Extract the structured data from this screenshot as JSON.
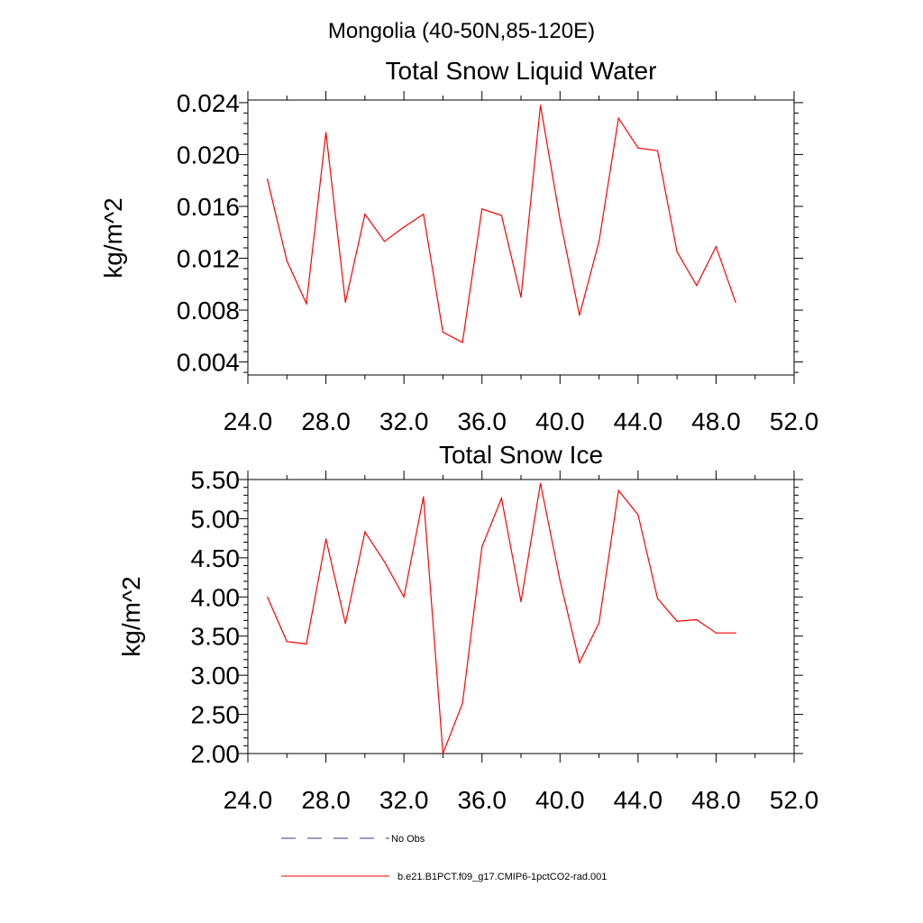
{
  "page_title": "Mongolia (40-50N,85-120E)",
  "chart_data": [
    {
      "type": "line",
      "title": "Total Snow Liquid Water",
      "xlabel": "",
      "ylabel": "kg/m^2",
      "xlim": [
        24,
        52
      ],
      "ylim": [
        0.003,
        0.0242
      ],
      "x_ticks": [
        24,
        28,
        32,
        36,
        40,
        44,
        48,
        52
      ],
      "x_tick_labels": [
        "24.0",
        "28.0",
        "32.0",
        "36.0",
        "40.0",
        "44.0",
        "48.0",
        "52.0"
      ],
      "y_ticks": [
        0.004,
        0.008,
        0.012,
        0.016,
        0.02,
        0.024
      ],
      "y_tick_labels": [
        "0.004",
        "0.008",
        "0.012",
        "0.016",
        "0.020",
        "0.024"
      ],
      "grid": false,
      "series": [
        {
          "color": "#ff0000",
          "x": [
            25,
            26,
            27,
            28,
            29,
            30,
            31,
            32,
            33,
            34,
            35,
            36,
            37,
            38,
            39,
            40,
            41,
            42,
            43,
            44,
            45,
            46,
            47,
            48,
            49
          ],
          "values": [
            0.0181,
            0.0118,
            0.0085,
            0.0217,
            0.0086,
            0.0154,
            0.0133,
            0.0144,
            0.0154,
            0.0063,
            0.0055,
            0.0158,
            0.0153,
            0.009,
            0.0238,
            0.015,
            0.0076,
            0.0133,
            0.0228,
            0.0205,
            0.0203,
            0.0125,
            0.0099,
            0.0129,
            0.0086
          ]
        }
      ]
    },
    {
      "type": "line",
      "title": "Total Snow Ice",
      "xlabel": "",
      "ylabel": "kg/m^2",
      "xlim": [
        24,
        52
      ],
      "ylim": [
        2.0,
        5.5
      ],
      "x_ticks": [
        24,
        28,
        32,
        36,
        40,
        44,
        48,
        52
      ],
      "x_tick_labels": [
        "24.0",
        "28.0",
        "32.0",
        "36.0",
        "40.0",
        "44.0",
        "48.0",
        "52.0"
      ],
      "y_ticks": [
        2.0,
        2.5,
        3.0,
        3.5,
        4.0,
        4.5,
        5.0,
        5.5
      ],
      "y_tick_labels": [
        "2.00",
        "2.50",
        "3.00",
        "3.50",
        "4.00",
        "4.50",
        "5.00",
        "5.50"
      ],
      "grid": false,
      "series": [
        {
          "color": "#ff0000",
          "x": [
            25,
            26,
            27,
            28,
            29,
            30,
            31,
            32,
            33,
            34,
            35,
            36,
            37,
            38,
            39,
            40,
            41,
            42,
            43,
            44,
            45,
            46,
            47,
            48,
            49
          ],
          "values": [
            4.0,
            3.43,
            3.4,
            4.74,
            3.66,
            4.83,
            4.45,
            4.0,
            5.28,
            2.0,
            2.64,
            4.64,
            5.26,
            3.94,
            5.45,
            4.21,
            3.16,
            3.67,
            5.36,
            5.05,
            3.98,
            3.69,
            3.71,
            3.54,
            3.54
          ]
        }
      ]
    }
  ],
  "legend": [
    {
      "label": "No Obs",
      "color": "#3a3a8a",
      "style": "dashed"
    },
    {
      "label": "b.e21.B1PCT.f09_g17.CMIP6-1pctCO2-rad.001",
      "color": "#ff0000",
      "style": "solid"
    }
  ]
}
